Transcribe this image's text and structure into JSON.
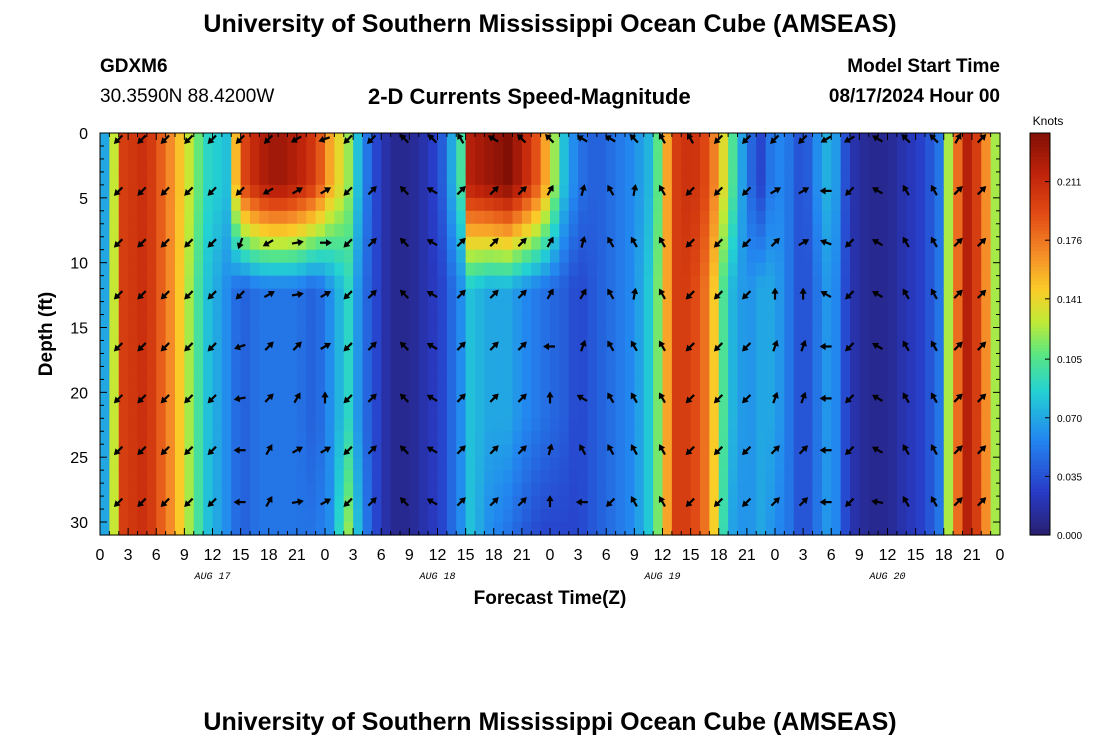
{
  "header": {
    "title": "University of Southern Mississippi Ocean Cube (AMSEAS)",
    "station_id": "GDXM6",
    "coordinates": "30.3590N  88.4200W",
    "product": "2-D Currents Speed-Magnitude",
    "model_start_label": "Model Start Time",
    "model_start_value": "08/17/2024 Hour 00"
  },
  "footer": {
    "title": "University of Southern Mississippi Ocean Cube (AMSEAS)"
  },
  "chart_data": {
    "type": "heatmap",
    "xlabel": "Forecast Time(Z)",
    "ylabel": "Depth (ft)",
    "x_range_hours": [
      0,
      96
    ],
    "y_range_ft": [
      0,
      31
    ],
    "y_ticks": [
      0,
      5,
      10,
      15,
      20,
      25,
      30
    ],
    "x_tick_labels": [
      "0",
      "3",
      "6",
      "9",
      "12",
      "15",
      "18",
      "21",
      "0",
      "3",
      "6",
      "9",
      "12",
      "15",
      "18",
      "21",
      "0",
      "3",
      "6",
      "9",
      "12",
      "15",
      "18",
      "21",
      "0",
      "3",
      "6",
      "9",
      "12",
      "15",
      "18",
      "21",
      "0"
    ],
    "day_labels": [
      {
        "label": "AUG 17",
        "hour": 12
      },
      {
        "label": "AUG 18",
        "hour": 36
      },
      {
        "label": "AUG 19",
        "hour": 60
      },
      {
        "label": "AUG 20",
        "hour": 84
      }
    ],
    "colorbar": {
      "title": "Knots",
      "min": 0.0,
      "max": 0.24,
      "ticks": [
        "0.000",
        "0.035",
        "0.070",
        "0.105",
        "0.141",
        "0.176",
        "0.211"
      ]
    },
    "speed_profile_knots": {
      "hours": [
        0,
        1.5,
        2.5,
        5,
        8,
        10,
        11.5,
        13.5,
        15,
        17,
        19,
        21,
        23,
        24.5,
        26.5,
        28,
        29.5,
        31,
        33,
        35,
        36.5,
        38.5,
        39.5,
        41.5,
        43.5,
        45,
        47,
        49.5,
        51,
        53,
        55,
        57,
        59,
        60.5,
        61.5,
        63,
        65,
        67,
        69,
        70.5,
        72,
        73.5,
        75,
        76.5,
        78,
        80,
        82,
        84,
        86,
        88,
        89.5,
        91,
        92.5,
        94,
        96
      ],
      "surface": [
        0.04,
        0.13,
        0.2,
        0.21,
        0.16,
        0.12,
        0.09,
        0.08,
        0.19,
        0.22,
        0.23,
        0.22,
        0.2,
        0.16,
        0.12,
        0.06,
        0.03,
        0.01,
        0.01,
        0.02,
        0.04,
        0.1,
        0.22,
        0.23,
        0.24,
        0.22,
        0.18,
        0.08,
        0.05,
        0.04,
        0.05,
        0.06,
        0.08,
        0.16,
        0.2,
        0.21,
        0.19,
        0.12,
        0.05,
        0.03,
        0.06,
        0.05,
        0.03,
        0.06,
        0.08,
        0.02,
        0.01,
        0.01,
        0.02,
        0.03,
        0.05,
        0.16,
        0.22,
        0.19,
        0.1
      ],
      "mid": [
        0.04,
        0.13,
        0.2,
        0.21,
        0.16,
        0.11,
        0.08,
        0.06,
        0.04,
        0.05,
        0.05,
        0.05,
        0.04,
        0.06,
        0.09,
        0.05,
        0.03,
        0.01,
        0.01,
        0.02,
        0.03,
        0.06,
        0.08,
        0.07,
        0.07,
        0.06,
        0.05,
        0.04,
        0.03,
        0.04,
        0.05,
        0.06,
        0.09,
        0.16,
        0.2,
        0.2,
        0.17,
        0.08,
        0.06,
        0.07,
        0.07,
        0.05,
        0.03,
        0.05,
        0.07,
        0.02,
        0.01,
        0.01,
        0.02,
        0.03,
        0.05,
        0.16,
        0.22,
        0.19,
        0.1
      ],
      "bottom": [
        0.04,
        0.13,
        0.2,
        0.21,
        0.16,
        0.11,
        0.08,
        0.06,
        0.04,
        0.05,
        0.05,
        0.05,
        0.05,
        0.06,
        0.12,
        0.06,
        0.03,
        0.01,
        0.01,
        0.02,
        0.03,
        0.06,
        0.08,
        0.06,
        0.05,
        0.04,
        0.03,
        0.03,
        0.03,
        0.04,
        0.05,
        0.06,
        0.09,
        0.16,
        0.2,
        0.2,
        0.17,
        0.07,
        0.06,
        0.07,
        0.06,
        0.05,
        0.03,
        0.05,
        0.07,
        0.02,
        0.01,
        0.01,
        0.02,
        0.03,
        0.05,
        0.16,
        0.22,
        0.19,
        0.1
      ]
    },
    "vector_depths_ft": [
      0,
      4,
      8,
      12,
      16,
      20,
      24,
      28
    ],
    "vector_hours": [
      2,
      4.5,
      7,
      9.5,
      12,
      15,
      18,
      21,
      24,
      26.5,
      29,
      32.5,
      35.5,
      38.5,
      42,
      45,
      48,
      51.5,
      54.5,
      57,
      60,
      63,
      66,
      69,
      72,
      75,
      77.5,
      80,
      83,
      86,
      89,
      91.5,
      94
    ],
    "vector_directions_deg": [
      [
        225,
        225,
        225,
        225,
        225,
        225,
        225,
        240,
        250,
        225,
        225,
        315,
        315,
        330,
        300,
        315,
        315,
        300,
        300,
        315,
        330,
        330,
        225,
        225,
        225,
        225,
        240,
        240,
        300,
        315,
        315,
        30,
        45
      ],
      [
        225,
        225,
        225,
        225,
        225,
        225,
        240,
        60,
        60,
        225,
        45,
        315,
        300,
        45,
        45,
        45,
        30,
        15,
        330,
        10,
        330,
        225,
        225,
        225,
        60,
        60,
        270,
        225,
        300,
        330,
        330,
        45,
        45
      ],
      [
        225,
        225,
        225,
        225,
        225,
        200,
        240,
        80,
        90,
        225,
        45,
        315,
        300,
        45,
        45,
        45,
        30,
        15,
        330,
        330,
        330,
        225,
        225,
        225,
        45,
        60,
        290,
        225,
        300,
        330,
        330,
        45,
        45
      ],
      [
        225,
        225,
        225,
        225,
        225,
        225,
        60,
        80,
        60,
        225,
        45,
        315,
        300,
        45,
        45,
        45,
        30,
        30,
        330,
        10,
        330,
        225,
        225,
        225,
        0,
        0,
        300,
        225,
        300,
        330,
        330,
        45,
        45
      ],
      [
        225,
        225,
        225,
        225,
        225,
        250,
        45,
        45,
        60,
        225,
        45,
        315,
        300,
        45,
        45,
        45,
        270,
        20,
        330,
        330,
        330,
        225,
        225,
        225,
        20,
        20,
        270,
        225,
        300,
        330,
        330,
        45,
        45
      ],
      [
        225,
        225,
        225,
        225,
        225,
        260,
        45,
        30,
        0,
        225,
        45,
        315,
        300,
        45,
        45,
        45,
        0,
        300,
        330,
        330,
        330,
        225,
        225,
        225,
        20,
        20,
        270,
        225,
        300,
        330,
        330,
        45,
        45
      ],
      [
        225,
        225,
        225,
        225,
        225,
        270,
        30,
        60,
        60,
        225,
        45,
        315,
        300,
        45,
        45,
        45,
        15,
        330,
        330,
        330,
        330,
        225,
        225,
        225,
        45,
        45,
        270,
        225,
        300,
        330,
        330,
        45,
        45
      ],
      [
        225,
        225,
        225,
        225,
        225,
        270,
        30,
        80,
        60,
        225,
        45,
        315,
        300,
        45,
        45,
        45,
        0,
        270,
        225,
        330,
        330,
        225,
        225,
        225,
        45,
        45,
        270,
        225,
        280,
        330,
        330,
        45,
        45
      ]
    ]
  }
}
